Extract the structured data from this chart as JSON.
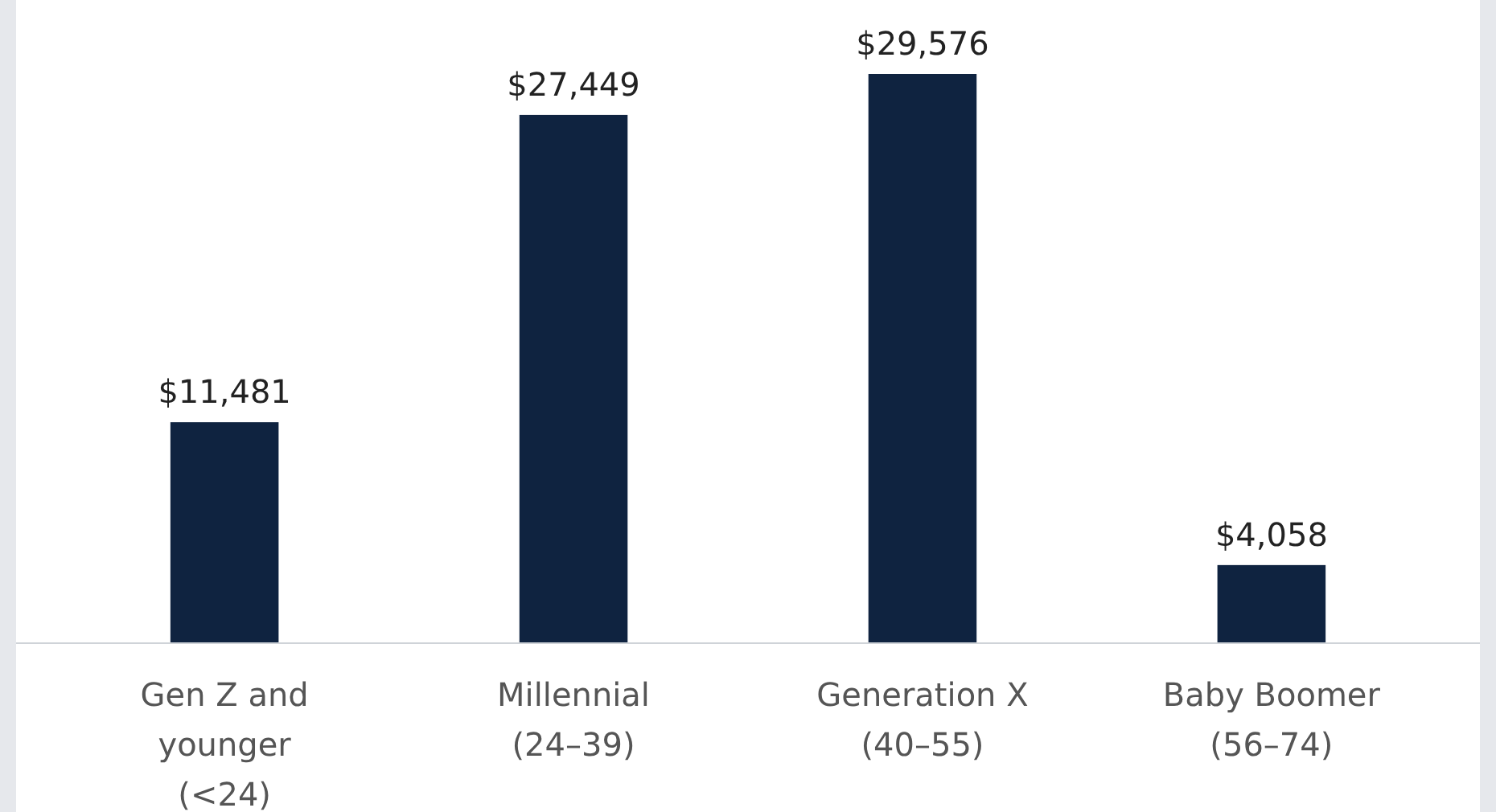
{
  "chart_data": {
    "type": "bar",
    "categories": [
      "Gen Z and\nyounger\n(<24)",
      "Millennial\n(24–39)",
      "Generation X\n(40–55)",
      "Baby Boomer\n(56–74)"
    ],
    "values": [
      11481,
      27449,
      29576,
      4058
    ],
    "value_labels": [
      "$11,481",
      "$27,449",
      "$29,576",
      "$4,058"
    ],
    "color": "#0f2340"
  }
}
